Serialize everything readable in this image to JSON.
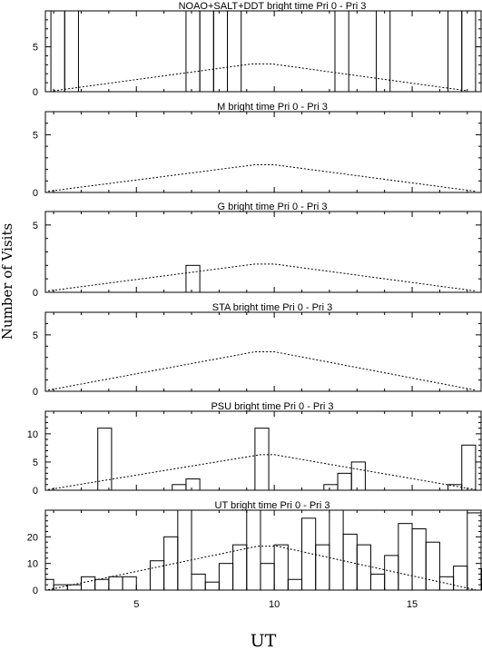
{
  "figure": {
    "ylabel": "Number of Visits",
    "xlabel": "UT"
  },
  "chart_data": [
    {
      "type": "bar",
      "title": "NOAO+SALT+DDT    bright time Pri 0 - Pri 3",
      "xlim": [
        1.7,
        17.5
      ],
      "ylim": [
        0,
        9
      ],
      "xticks": [
        5,
        10,
        15
      ],
      "yticks": [
        0,
        5
      ],
      "bin_width": 0.5,
      "bins": [
        [
          1.9,
          2.4,
          9
        ],
        [
          2.4,
          2.9,
          9
        ],
        [
          6.8,
          7.3,
          9
        ],
        [
          7.3,
          7.8,
          9
        ],
        [
          7.8,
          8.3,
          9
        ],
        [
          8.3,
          8.8,
          9
        ],
        [
          12.2,
          12.7,
          9
        ],
        [
          13.7,
          14.2,
          9
        ],
        [
          16.3,
          16.8,
          9
        ],
        [
          16.8,
          17.3,
          9
        ]
      ],
      "curve": [
        [
          2.0,
          0.1
        ],
        [
          9.2,
          3.1
        ],
        [
          9.9,
          3.1
        ],
        [
          17.0,
          0.1
        ]
      ]
    },
    {
      "type": "bar",
      "title": "M    bright time Pri 0 - Pri 3",
      "xlim": [
        1.7,
        17.5
      ],
      "ylim": [
        0,
        7
      ],
      "xticks": [
        5,
        10,
        15
      ],
      "yticks": [
        0,
        5
      ],
      "bin_width": 0.5,
      "bins": [],
      "curve": [
        [
          1.8,
          0.1
        ],
        [
          9.3,
          2.4
        ],
        [
          10.0,
          2.4
        ],
        [
          17.3,
          0.1
        ]
      ]
    },
    {
      "type": "bar",
      "title": "G    bright time Pri 0 - Pri 3",
      "xlim": [
        1.7,
        17.5
      ],
      "ylim": [
        0,
        6
      ],
      "xticks": [
        5,
        10,
        15
      ],
      "yticks": [
        0,
        5
      ],
      "bin_width": 0.5,
      "bins": [
        [
          6.8,
          7.3,
          2
        ]
      ],
      "curve": [
        [
          1.8,
          0.1
        ],
        [
          9.3,
          2.1
        ],
        [
          10.0,
          2.1
        ],
        [
          17.3,
          0.1
        ]
      ]
    },
    {
      "type": "bar",
      "title": "STA    bright time Pri 0 - Pri 3",
      "xlim": [
        1.7,
        17.5
      ],
      "ylim": [
        0,
        7
      ],
      "xticks": [
        5,
        10,
        15
      ],
      "yticks": [
        0,
        5
      ],
      "bin_width": 0.5,
      "bins": [],
      "curve": [
        [
          1.8,
          0.1
        ],
        [
          9.3,
          3.5
        ],
        [
          10.0,
          3.5
        ],
        [
          17.3,
          0.1
        ]
      ]
    },
    {
      "type": "bar",
      "title": "PSU    bright time Pri 0 - Pri 3",
      "xlim": [
        1.7,
        17.5
      ],
      "ylim": [
        0,
        14
      ],
      "xticks": [
        5,
        10,
        15
      ],
      "yticks": [
        0,
        5,
        10
      ],
      "bin_width": 0.5,
      "bins": [
        [
          3.6,
          4.1,
          11
        ],
        [
          6.3,
          6.8,
          1
        ],
        [
          6.8,
          7.3,
          2
        ],
        [
          9.3,
          9.8,
          11
        ],
        [
          11.8,
          12.3,
          1
        ],
        [
          12.3,
          12.8,
          3
        ],
        [
          12.8,
          13.3,
          5
        ],
        [
          16.3,
          16.8,
          1
        ],
        [
          16.8,
          17.3,
          8
        ]
      ],
      "curve": [
        [
          1.8,
          0.1
        ],
        [
          9.5,
          6.3
        ],
        [
          10.0,
          6.3
        ],
        [
          17.3,
          0.1
        ]
      ]
    },
    {
      "type": "bar",
      "title": "UT    bright time Pri 0 - Pri 3",
      "xlim": [
        1.7,
        17.5
      ],
      "ylim": [
        0,
        30
      ],
      "xticks": [
        5,
        10,
        15
      ],
      "yticks": [
        0,
        10,
        20
      ],
      "bin_width": 0.5,
      "bins": [
        [
          1.7,
          2.0,
          4
        ],
        [
          2.0,
          2.5,
          2
        ],
        [
          2.5,
          3.0,
          2
        ],
        [
          3.0,
          3.5,
          5
        ],
        [
          3.5,
          4.0,
          4
        ],
        [
          4.0,
          4.5,
          5
        ],
        [
          4.5,
          5.0,
          5
        ],
        [
          5.0,
          5.5,
          0
        ],
        [
          5.5,
          6.0,
          11
        ],
        [
          6.0,
          6.5,
          20
        ],
        [
          6.5,
          7.0,
          30
        ],
        [
          7.0,
          7.5,
          6
        ],
        [
          7.5,
          8.0,
          3
        ],
        [
          8.0,
          8.5,
          10
        ],
        [
          8.5,
          9.0,
          17
        ],
        [
          9.0,
          9.5,
          30
        ],
        [
          9.5,
          10.0,
          10
        ],
        [
          10.0,
          10.5,
          17
        ],
        [
          10.5,
          11.0,
          4
        ],
        [
          11.0,
          11.5,
          27
        ],
        [
          11.5,
          12.0,
          17
        ],
        [
          12.0,
          12.5,
          30
        ],
        [
          12.5,
          13.0,
          21
        ],
        [
          13.0,
          13.5,
          17
        ],
        [
          13.5,
          14.0,
          6
        ],
        [
          14.0,
          14.5,
          13
        ],
        [
          14.5,
          15.0,
          25
        ],
        [
          15.0,
          15.5,
          23
        ],
        [
          15.5,
          16.0,
          18
        ],
        [
          16.0,
          16.5,
          5
        ],
        [
          16.5,
          17.0,
          9
        ],
        [
          17.0,
          17.5,
          29
        ],
        [
          17.5,
          17.5,
          8
        ]
      ],
      "curve": [
        [
          1.8,
          0.1
        ],
        [
          9.4,
          16.5
        ],
        [
          10.1,
          16.5
        ],
        [
          17.3,
          0.1
        ]
      ]
    }
  ]
}
